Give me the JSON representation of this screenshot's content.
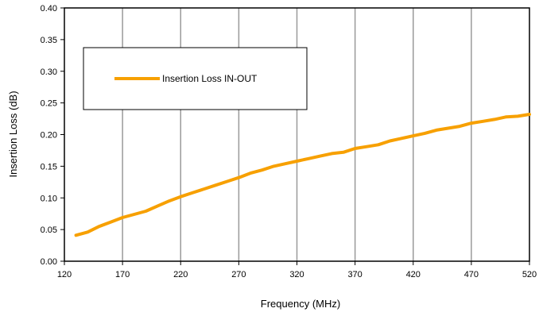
{
  "chart_data": {
    "type": "line",
    "xlabel": "Frequency (MHz)",
    "ylabel": "Insertion Loss (dB)",
    "xlim": [
      120,
      520
    ],
    "ylim": [
      0,
      0.4
    ],
    "x_ticks": [
      "120",
      "170",
      "220",
      "270",
      "320",
      "370",
      "420",
      "470",
      "520"
    ],
    "y_ticks": [
      "0.00",
      "0.05",
      "0.10",
      "0.15",
      "0.20",
      "0.25",
      "0.30",
      "0.35",
      "0.40"
    ],
    "x_tick_values": [
      120,
      170,
      220,
      270,
      320,
      370,
      420,
      470,
      520
    ],
    "y_tick_values": [
      0,
      0.05,
      0.1,
      0.15,
      0.2,
      0.25,
      0.3,
      0.35,
      0.4
    ],
    "grid": "vertical",
    "legend_position": "upper-left",
    "series": [
      {
        "name": "Insertion Loss IN-OUT",
        "color": "#F7A000",
        "x": [
          130,
          140,
          150,
          160,
          170,
          180,
          190,
          200,
          210,
          220,
          230,
          240,
          250,
          260,
          270,
          280,
          290,
          300,
          310,
          320,
          330,
          340,
          350,
          360,
          370,
          380,
          390,
          400,
          410,
          420,
          430,
          440,
          450,
          460,
          470,
          480,
          490,
          500,
          510,
          520
        ],
        "y": [
          0.041,
          0.046,
          0.055,
          0.062,
          0.069,
          0.074,
          0.079,
          0.087,
          0.095,
          0.102,
          0.108,
          0.114,
          0.12,
          0.126,
          0.132,
          0.139,
          0.144,
          0.15,
          0.154,
          0.158,
          0.162,
          0.166,
          0.17,
          0.172,
          0.178,
          0.181,
          0.184,
          0.19,
          0.194,
          0.198,
          0.202,
          0.207,
          0.21,
          0.213,
          0.218,
          0.221,
          0.224,
          0.228,
          0.229,
          0.232
        ]
      }
    ]
  }
}
